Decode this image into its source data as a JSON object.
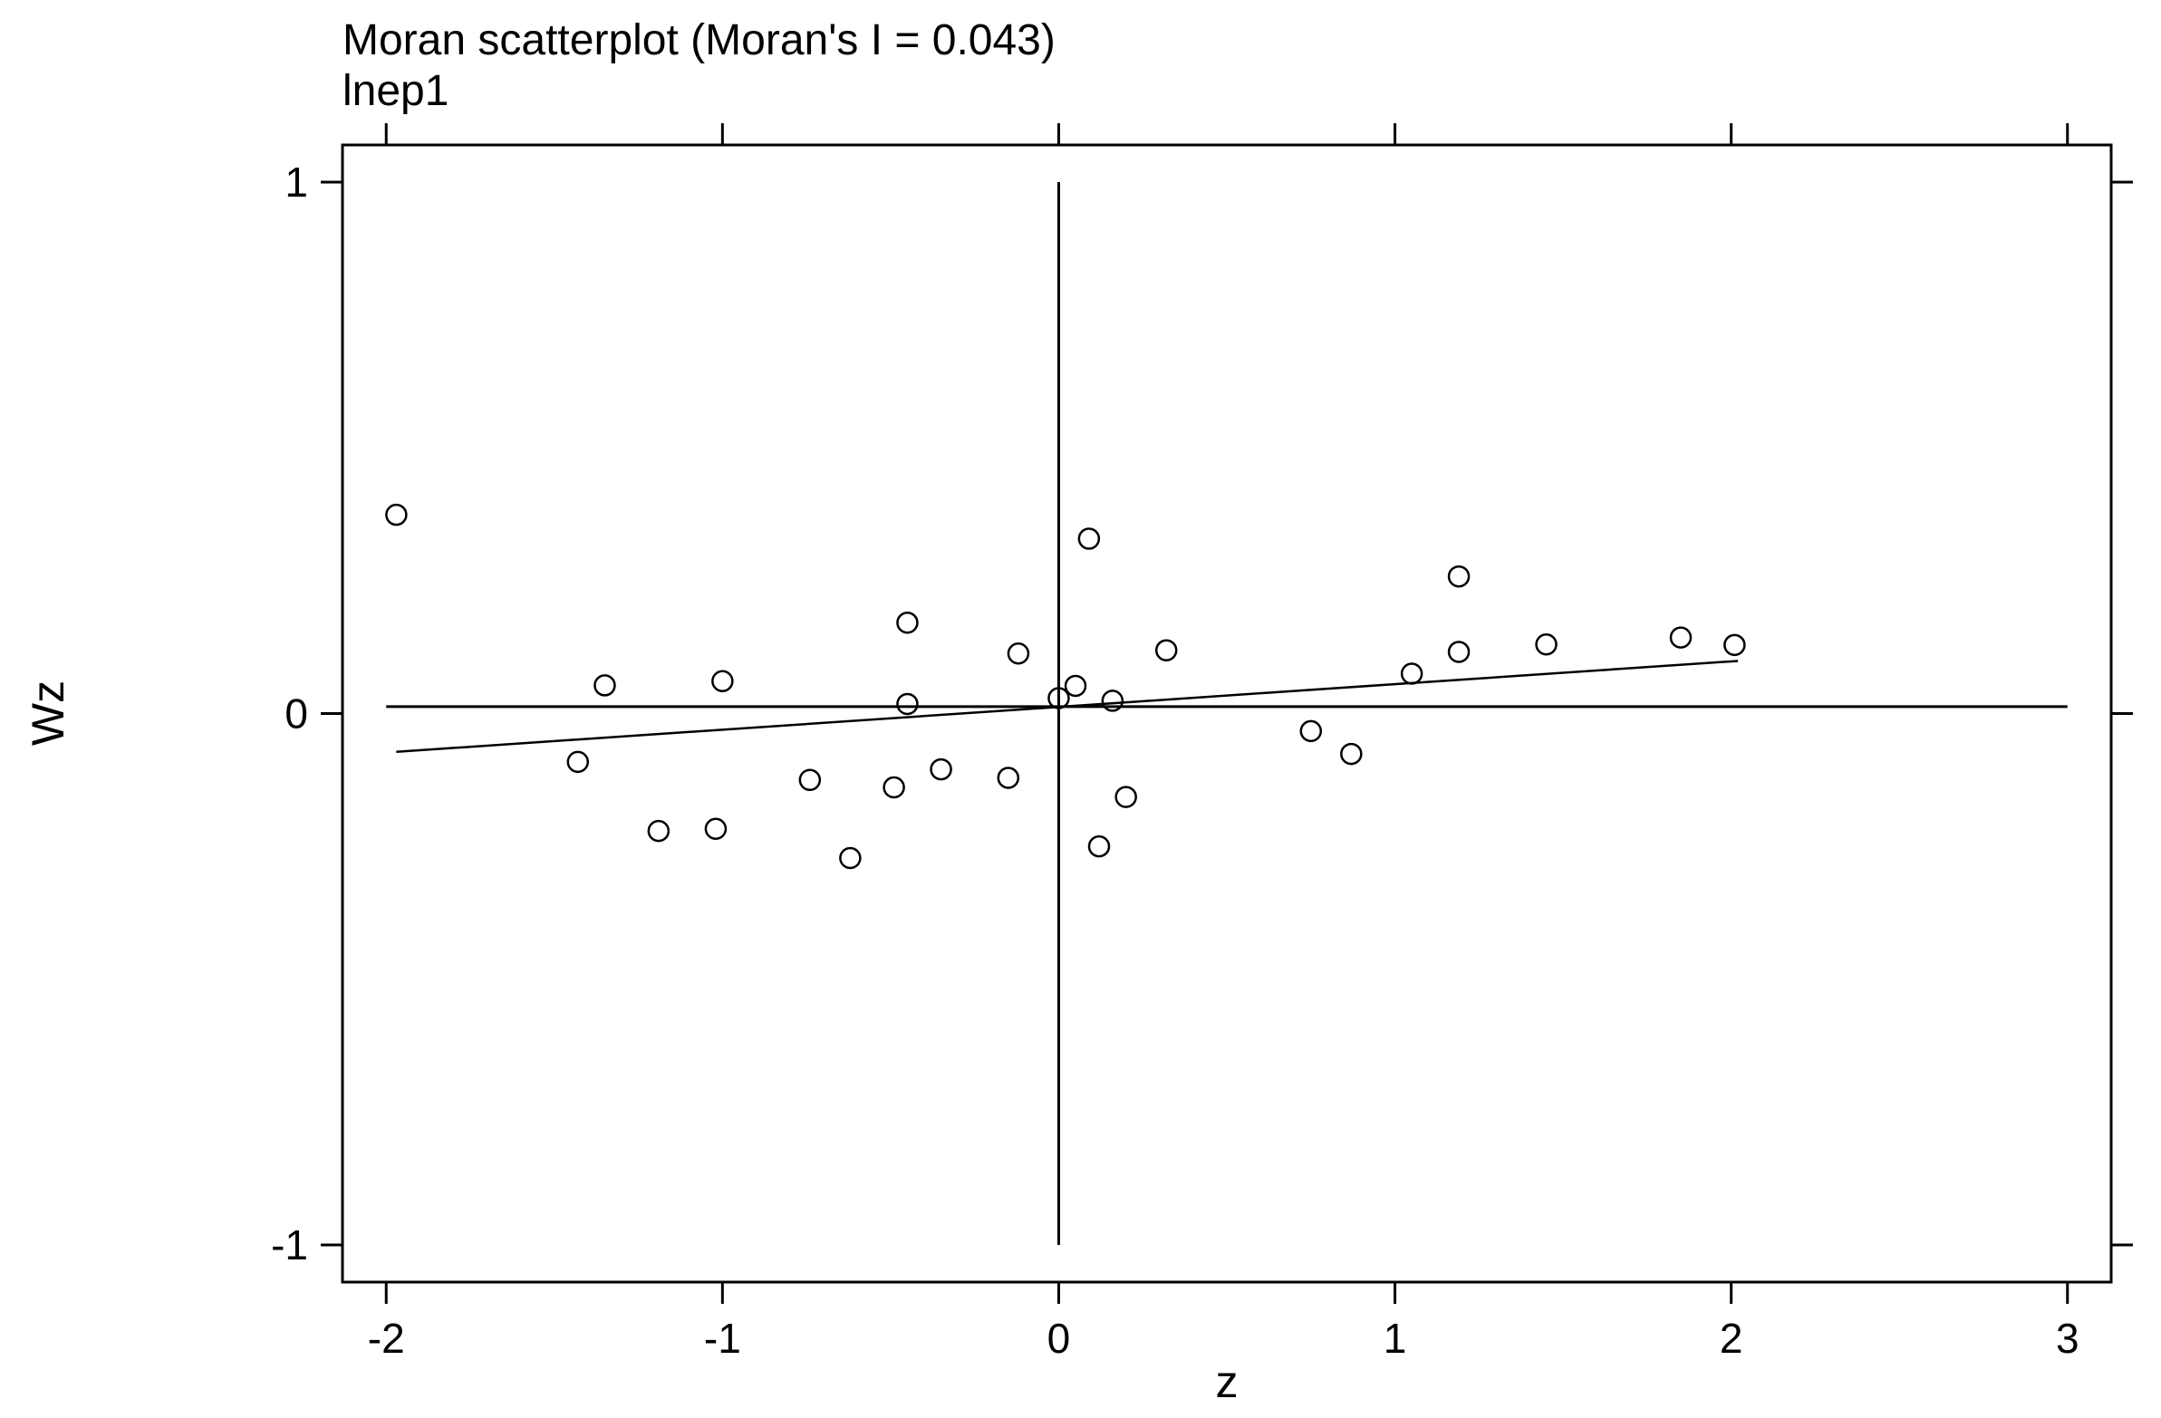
{
  "chart_data": {
    "type": "scatter",
    "title": "Moran scatterplot (Moran's I = 0.043)",
    "subtitle": "lnep1",
    "xlabel": "z",
    "ylabel": "Wz",
    "xlim": [
      -2.13,
      3.13
    ],
    "ylim": [
      -1.07,
      1.07
    ],
    "xticks": [
      "-2",
      "-1",
      "0",
      "1",
      "2",
      "3"
    ],
    "xtick_values": [
      -2,
      -1,
      0,
      1,
      2,
      3
    ],
    "yticks": [
      "-1",
      "0",
      "1"
    ],
    "ytick_values": [
      -1,
      0,
      1
    ],
    "grid": false,
    "legend": "none",
    "reference_lines": {
      "vertical_x": 0,
      "horizontal_y": 0.013,
      "vertical_range": [
        -1,
        1
      ],
      "horizontal_range": [
        -2,
        3
      ]
    },
    "fit_line": {
      "x": [
        -1.97,
        2.02
      ],
      "y": [
        -0.072,
        0.099
      ]
    },
    "points": [
      {
        "x": -1.97,
        "y": 0.374
      },
      {
        "x": -1.43,
        "y": -0.091
      },
      {
        "x": -1.35,
        "y": 0.053
      },
      {
        "x": -1.19,
        "y": -0.221
      },
      {
        "x": -1.02,
        "y": -0.217
      },
      {
        "x": -1.0,
        "y": 0.061
      },
      {
        "x": -0.74,
        "y": -0.125
      },
      {
        "x": -0.62,
        "y": -0.272
      },
      {
        "x": -0.49,
        "y": -0.139
      },
      {
        "x": -0.45,
        "y": 0.171
      },
      {
        "x": -0.45,
        "y": 0.018
      },
      {
        "x": -0.35,
        "y": -0.105
      },
      {
        "x": -0.15,
        "y": -0.121
      },
      {
        "x": -0.12,
        "y": 0.113
      },
      {
        "x": 0.0,
        "y": 0.029
      },
      {
        "x": 0.05,
        "y": 0.052
      },
      {
        "x": 0.09,
        "y": 0.329
      },
      {
        "x": 0.12,
        "y": -0.25
      },
      {
        "x": 0.16,
        "y": 0.024
      },
      {
        "x": 0.2,
        "y": -0.157
      },
      {
        "x": 0.32,
        "y": 0.119
      },
      {
        "x": 0.75,
        "y": -0.033
      },
      {
        "x": 0.87,
        "y": -0.076
      },
      {
        "x": 1.05,
        "y": 0.075
      },
      {
        "x": 1.19,
        "y": 0.258
      },
      {
        "x": 1.19,
        "y": 0.116
      },
      {
        "x": 1.45,
        "y": 0.13
      },
      {
        "x": 1.85,
        "y": 0.143
      },
      {
        "x": 2.01,
        "y": 0.129
      }
    ]
  }
}
